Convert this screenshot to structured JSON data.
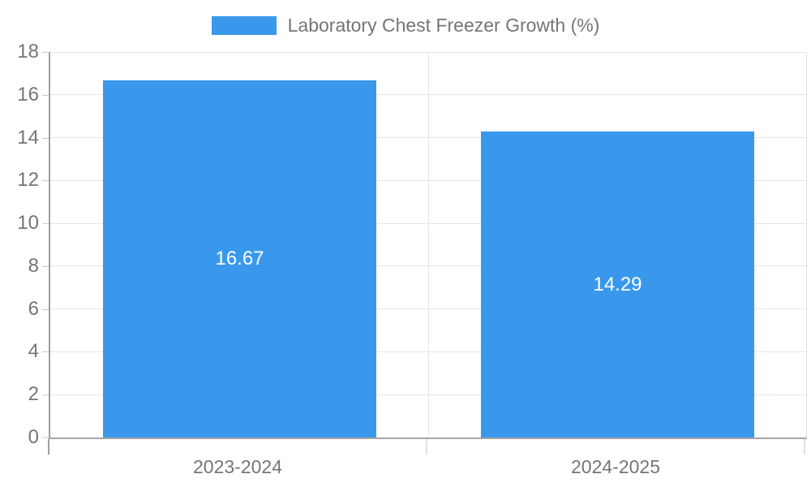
{
  "legend": {
    "label": "Laboratory Chest Freezer Growth (%)"
  },
  "chart_data": {
    "type": "bar",
    "title": "Laboratory Chest Freezer Growth (%)",
    "categories": [
      "2023-2024",
      "2024-2025"
    ],
    "values": [
      16.67,
      14.29
    ],
    "data_labels": [
      "16.67",
      "14.29"
    ],
    "xlabel": "",
    "ylabel": "",
    "ylim": [
      0,
      18
    ],
    "yticks": [
      0,
      2,
      4,
      6,
      8,
      10,
      12,
      14,
      16,
      18
    ],
    "grid": true,
    "legend_position": "top-center",
    "bar_color": "#3998ec",
    "bar_label_color": "#ffffff",
    "gridline_color": "#e6e6e6",
    "axis_color": "#9e9e9e",
    "tick_text_color": "#757575"
  }
}
